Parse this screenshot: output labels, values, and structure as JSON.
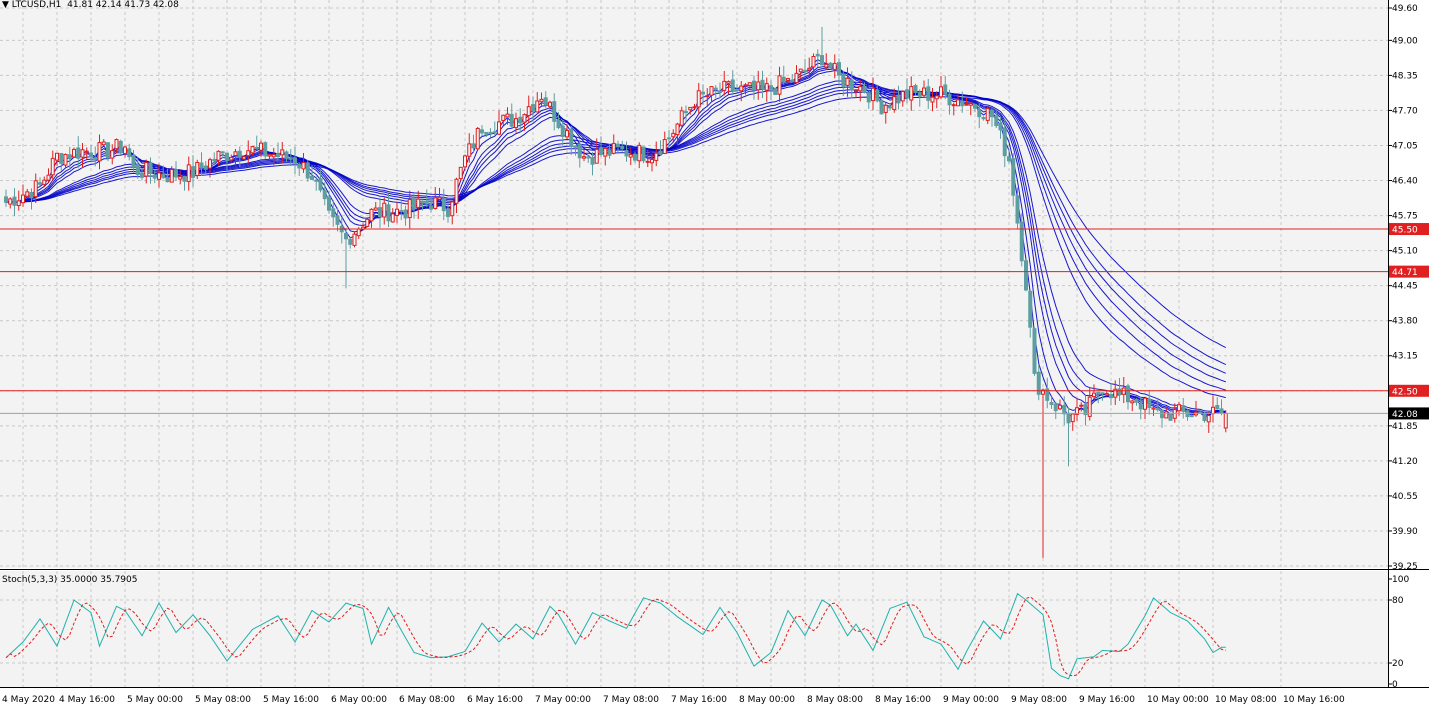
{
  "header": {
    "marker": "▼",
    "symbol_tf": "LTCUSD,H1",
    "ohlc": "41.81 42.14 41.73 42.08"
  },
  "stoch_header": {
    "label": "Stoch(5,3,3) 35.0000 35.7905"
  },
  "colors": {
    "background": "#f3f3f3",
    "grid": "#c8c8c8",
    "bull_candle": "#e02020",
    "bear_candle": "#5f9ea0",
    "ribbon": "#0000c8",
    "level_line": "#e02020",
    "stoch_main": "#20b2aa",
    "stoch_signal": "#e02020",
    "label_bg_level": "#e02020",
    "label_bg_price": "#000000"
  },
  "chart_data": [
    {
      "type": "candlestick",
      "title": "LTCUSD,H1",
      "ylim": [
        39.25,
        49.6
      ],
      "y_ticks": [
        "49.60",
        "49.00",
        "48.35",
        "47.70",
        "47.05",
        "46.40",
        "45.75",
        "45.10",
        "44.45",
        "43.80",
        "43.15",
        "42.50",
        "41.85",
        "41.20",
        "40.55",
        "39.90",
        "39.25"
      ],
      "x_ticks": [
        "4 May 2020",
        "4 May 16:00",
        "5 May 00:00",
        "5 May 08:00",
        "5 May 16:00",
        "6 May 00:00",
        "6 May 08:00",
        "6 May 16:00",
        "7 May 00:00",
        "7 May 08:00",
        "7 May 16:00",
        "8 May 00:00",
        "8 May 08:00",
        "8 May 16:00",
        "9 May 00:00",
        "9 May 08:00",
        "9 May 16:00",
        "10 May 00:00",
        "10 May 08:00",
        "10 May 16:00"
      ],
      "key_anchors": [
        [
          0,
          46.0
        ],
        [
          8,
          46.3
        ],
        [
          12,
          46.85
        ],
        [
          18,
          46.95
        ],
        [
          24,
          46.95
        ],
        [
          28,
          47.05
        ],
        [
          30,
          46.6
        ],
        [
          38,
          46.5
        ],
        [
          44,
          46.55
        ],
        [
          50,
          46.85
        ],
        [
          56,
          47.0
        ],
        [
          62,
          46.9
        ],
        [
          68,
          46.8
        ],
        [
          72,
          46.5
        ],
        [
          76,
          45.7
        ],
        [
          80,
          45.3
        ],
        [
          86,
          45.8
        ],
        [
          94,
          45.85
        ],
        [
          100,
          46.0
        ],
        [
          104,
          45.9
        ],
        [
          108,
          46.8
        ],
        [
          112,
          47.4
        ],
        [
          120,
          47.55
        ],
        [
          126,
          48.0
        ],
        [
          130,
          47.5
        ],
        [
          136,
          46.85
        ],
        [
          144,
          46.95
        ],
        [
          152,
          46.9
        ],
        [
          156,
          47.2
        ],
        [
          162,
          47.9
        ],
        [
          170,
          48.1
        ],
        [
          178,
          48.05
        ],
        [
          186,
          48.3
        ],
        [
          192,
          48.7
        ],
        [
          196,
          48.3
        ],
        [
          202,
          48.1
        ],
        [
          206,
          47.8
        ],
        [
          212,
          48.0
        ],
        [
          220,
          48.0
        ],
        [
          228,
          47.8
        ],
        [
          232,
          47.6
        ],
        [
          236,
          46.8
        ],
        [
          240,
          44.5
        ],
        [
          242,
          42.7
        ],
        [
          246,
          42.3
        ],
        [
          250,
          42.0
        ],
        [
          254,
          42.1
        ],
        [
          258,
          42.6
        ],
        [
          262,
          42.4
        ],
        [
          266,
          42.35
        ],
        [
          270,
          42.08
        ]
      ],
      "levels": [
        {
          "value": 45.5,
          "label": "45.50"
        },
        {
          "value": 44.71,
          "label": "44.71"
        },
        {
          "value": 42.5,
          "label": "42.50"
        }
      ],
      "current_price": {
        "value": 42.08,
        "label": "42.08"
      }
    },
    {
      "type": "line",
      "title": "Stoch(5,3,3) 35.0000 35.7905",
      "ylim": [
        0,
        100
      ],
      "y_ticks": [
        "100",
        "80",
        "20",
        "0"
      ],
      "levels": [
        80,
        20
      ],
      "key_anchors": [
        [
          0,
          25
        ],
        [
          4,
          40
        ],
        [
          8,
          62
        ],
        [
          12,
          36
        ],
        [
          16,
          80
        ],
        [
          20,
          68
        ],
        [
          22,
          36
        ],
        [
          26,
          74
        ],
        [
          28,
          70
        ],
        [
          32,
          46
        ],
        [
          36,
          77
        ],
        [
          40,
          49
        ],
        [
          44,
          66
        ],
        [
          48,
          46
        ],
        [
          52,
          22
        ],
        [
          58,
          52
        ],
        [
          64,
          65
        ],
        [
          68,
          40
        ],
        [
          72,
          70
        ],
        [
          76,
          59
        ],
        [
          80,
          77
        ],
        [
          84,
          72
        ],
        [
          86,
          38
        ],
        [
          90,
          73
        ],
        [
          94,
          44
        ],
        [
          96,
          30
        ],
        [
          100,
          25
        ],
        [
          104,
          26
        ],
        [
          108,
          31
        ],
        [
          112,
          58
        ],
        [
          116,
          40
        ],
        [
          120,
          57
        ],
        [
          124,
          43
        ],
        [
          128,
          74
        ],
        [
          130,
          66
        ],
        [
          134,
          38
        ],
        [
          138,
          68
        ],
        [
          142,
          60
        ],
        [
          146,
          53
        ],
        [
          150,
          82
        ],
        [
          154,
          77
        ],
        [
          158,
          64
        ],
        [
          164,
          47
        ],
        [
          168,
          73
        ],
        [
          172,
          49
        ],
        [
          176,
          17
        ],
        [
          180,
          30
        ],
        [
          184,
          70
        ],
        [
          188,
          46
        ],
        [
          192,
          80
        ],
        [
          194,
          75
        ],
        [
          198,
          46
        ],
        [
          200,
          57
        ],
        [
          204,
          32
        ],
        [
          208,
          72
        ],
        [
          212,
          78
        ],
        [
          216,
          45
        ],
        [
          220,
          38
        ],
        [
          224,
          14
        ],
        [
          226,
          31
        ],
        [
          230,
          60
        ],
        [
          234,
          43
        ],
        [
          238,
          86
        ],
        [
          240,
          80
        ],
        [
          244,
          66
        ],
        [
          246,
          15
        ],
        [
          248,
          8
        ],
        [
          250,
          5
        ],
        [
          252,
          24
        ],
        [
          256,
          26
        ],
        [
          258,
          32
        ],
        [
          262,
          31
        ],
        [
          264,
          38
        ],
        [
          268,
          65
        ],
        [
          270,
          82
        ],
        [
          274,
          68
        ],
        [
          278,
          60
        ],
        [
          282,
          43
        ],
        [
          284,
          30
        ],
        [
          286,
          35
        ]
      ]
    }
  ]
}
